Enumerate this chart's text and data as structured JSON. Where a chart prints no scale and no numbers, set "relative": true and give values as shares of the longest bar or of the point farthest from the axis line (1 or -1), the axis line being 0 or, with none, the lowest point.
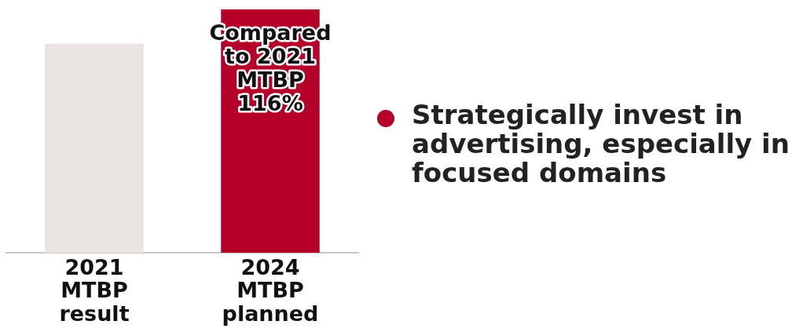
{
  "chart_data": {
    "type": "bar",
    "relative": true,
    "categories": [
      "2021 MTBP result",
      "2024 MTBP planned"
    ],
    "values": [
      0.86,
      1
    ],
    "colors": [
      "#ebe5e1",
      "#b5002a"
    ],
    "grid": false,
    "legend": false,
    "annotations": [
      "Compared to 2021 MTBP 116%",
      "Strategically invest in advertising, especially in focused domains"
    ]
  }
}
